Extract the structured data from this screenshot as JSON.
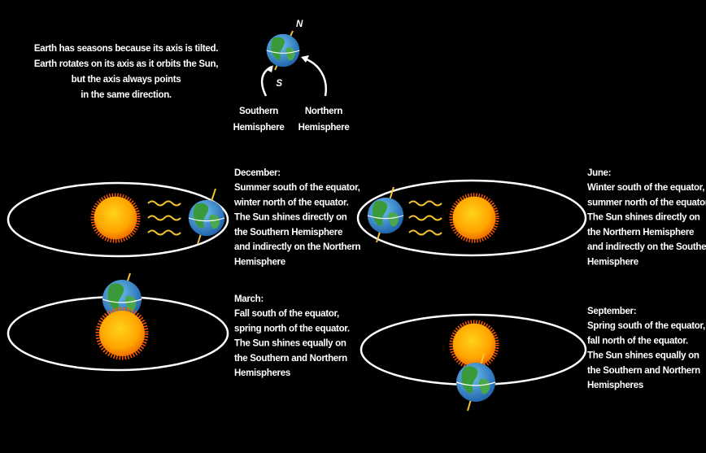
{
  "intro": {
    "lines": [
      "Earth has seasons because its axis is tilted.",
      "Earth rotates on its axis as it orbits the Sun,",
      "but the axis always points",
      "in the same direction."
    ]
  },
  "globe": {
    "north": "N",
    "south": "S",
    "southern_label": [
      "Southern",
      "Hemisphere"
    ],
    "northern_label": [
      "Northern",
      "Hemisphere"
    ]
  },
  "panels": [
    {
      "title": "December:",
      "lines": [
        "Summer south of the equator,",
        "winter north of the equator.",
        "The Sun shines directly on",
        "the Southern Hemisphere",
        "and indirectly on the Northern",
        "Hemisphere"
      ]
    },
    {
      "title": "June:",
      "lines": [
        "Winter south of the equator,",
        "summer north of the equator.",
        "The Sun shines directly on",
        "the Northern Hemisphere",
        "and indirectly on the Southern",
        "Hemisphere"
      ]
    },
    {
      "title": "March:",
      "lines": [
        "Fall south of the equator,",
        "spring north of the equator.",
        "The Sun shines equally on",
        "the Southern and Northern",
        "Hemispheres"
      ]
    },
    {
      "title": "September:",
      "lines": [
        "Spring south of the equator,",
        "fall north of the equator.",
        "The Sun shines equally on",
        "the Southern and Northern",
        "Hemispheres"
      ]
    }
  ]
}
